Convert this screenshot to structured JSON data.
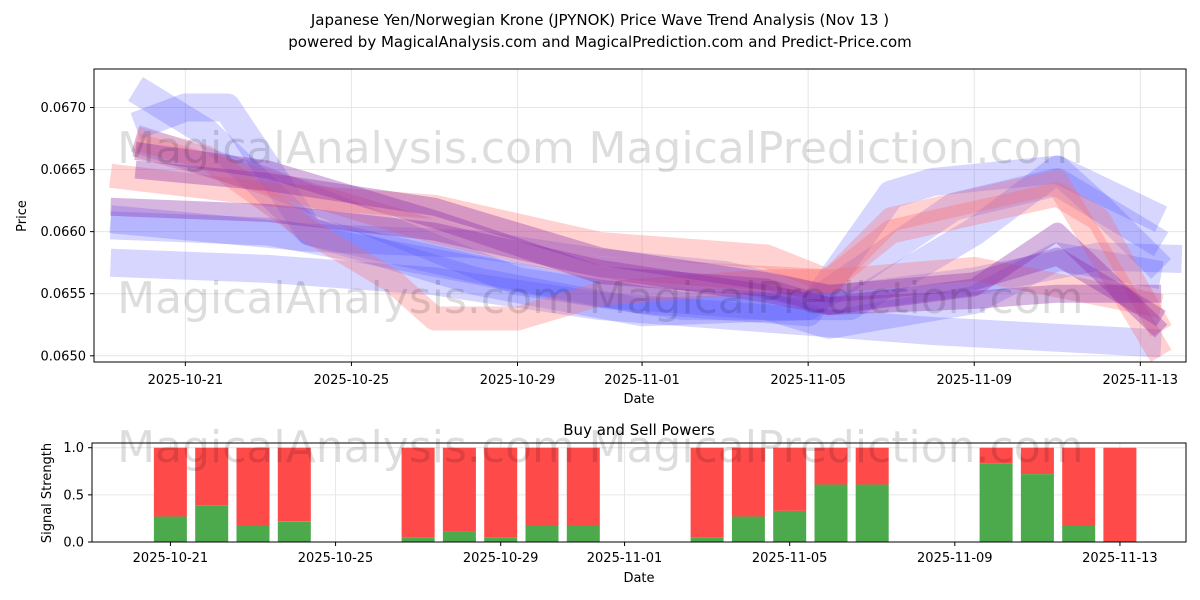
{
  "title_line1": "Japanese Yen/Norwegian Krone (JPYNOK) Price Wave Trend Analysis (Nov 13 )",
  "title_line2": "powered by MagicalAnalysis.com and MagicalPrediction.com and Predict-Price.com",
  "watermarks": [
    "MagicalAnalysis.com",
    "MagicalPrediction.com"
  ],
  "colors": {
    "buy": "#4caa4c",
    "sell": "#ff4a4a",
    "blue_wave": "#4444ff",
    "red_wave": "#ff6666",
    "purple_wave": "#8a2ba8"
  },
  "chart_data": [
    {
      "type": "line",
      "title": "",
      "xlabel": "Date",
      "ylabel": "Price",
      "x_ticks": [
        "2025-10-21",
        "2025-10-25",
        "2025-10-29",
        "2025-11-01",
        "2025-11-05",
        "2025-11-09",
        "2025-11-13"
      ],
      "y_ticks": [
        "0.0650",
        "0.0655",
        "0.0660",
        "0.0665",
        "0.0670"
      ],
      "ylim": [
        0.06495,
        0.06731
      ],
      "xlim_day_index": [
        -2.2,
        24.1
      ],
      "x_start_date": "2025-10-21",
      "series": [
        {
          "name": "blue-1",
          "color": "blue",
          "points": [
            [
              -1.8,
              0.06575
            ],
            [
              2,
              0.0657
            ],
            [
              6,
              0.0656
            ],
            [
              10,
              0.0654
            ],
            [
              14,
              0.0653
            ],
            [
              18,
              0.0652
            ],
            [
              23.5,
              0.0651
            ]
          ]
        },
        {
          "name": "blue-2",
          "color": "blue",
          "points": [
            [
              -1.8,
              0.0661
            ],
            [
              3,
              0.06595
            ],
            [
              7,
              0.0659
            ],
            [
              10,
              0.06575
            ],
            [
              13,
              0.06565
            ],
            [
              15.5,
              0.06545
            ],
            [
              19,
              0.0656
            ],
            [
              22,
              0.0658
            ],
            [
              24,
              0.06578
            ]
          ]
        },
        {
          "name": "blue-3",
          "color": "blue",
          "points": [
            [
              -1.8,
              0.06605
            ],
            [
              2,
              0.066
            ],
            [
              6,
              0.06575
            ],
            [
              10,
              0.0655
            ],
            [
              14,
              0.0654
            ],
            [
              15.5,
              0.06525
            ],
            [
              19,
              0.06545
            ],
            [
              21,
              0.0658
            ],
            [
              23.5,
              0.06565
            ]
          ]
        },
        {
          "name": "blue-4",
          "color": "blue",
          "points": [
            [
              -1.2,
              0.06715
            ],
            [
              0.5,
              0.0668
            ],
            [
              3,
              0.066
            ],
            [
              7,
              0.0656
            ],
            [
              11,
              0.06535
            ],
            [
              15,
              0.0654
            ],
            [
              18.5,
              0.0662
            ],
            [
              21,
              0.0664
            ],
            [
              23.5,
              0.0659
            ]
          ]
        },
        {
          "name": "blue-5",
          "color": "blue",
          "points": [
            [
              -1.2,
              0.06685
            ],
            [
              0,
              0.067
            ],
            [
              1,
              0.067
            ],
            [
              3,
              0.066
            ],
            [
              7,
              0.0657
            ],
            [
              11,
              0.06545
            ],
            [
              15,
              0.06535
            ],
            [
              17,
              0.0663
            ],
            [
              18,
              0.0664
            ],
            [
              21,
              0.0665
            ],
            [
              23.5,
              0.0661
            ]
          ]
        },
        {
          "name": "blue-6",
          "color": "blue",
          "points": [
            [
              -1.2,
              0.06675
            ],
            [
              2,
              0.0664
            ],
            [
              5,
              0.066
            ],
            [
              8,
              0.0656
            ],
            [
              12,
              0.0654
            ],
            [
              16,
              0.0654
            ],
            [
              19,
              0.066
            ],
            [
              21,
              0.0665
            ],
            [
              22,
              0.0662
            ],
            [
              23.5,
              0.0657
            ]
          ]
        },
        {
          "name": "red-1",
          "color": "red",
          "points": [
            [
              -1.8,
              0.06645
            ],
            [
              2,
              0.0663
            ],
            [
              6,
              0.0662
            ],
            [
              10,
              0.0659
            ],
            [
              14,
              0.0658
            ],
            [
              15.5,
              0.0656
            ],
            [
              17,
              0.066
            ],
            [
              21,
              0.0663
            ],
            [
              22,
              0.0661
            ],
            [
              23.5,
              0.0652
            ]
          ]
        },
        {
          "name": "red-2",
          "color": "red",
          "points": [
            [
              -1.2,
              0.06675
            ],
            [
              0.5,
              0.0666
            ],
            [
              3,
              0.066
            ],
            [
              5,
              0.0656
            ],
            [
              6,
              0.0653
            ],
            [
              8,
              0.0653
            ],
            [
              10,
              0.0655
            ],
            [
              14,
              0.0656
            ],
            [
              15.5,
              0.0656
            ],
            [
              17,
              0.0661
            ],
            [
              21,
              0.0664
            ],
            [
              23.5,
              0.065
            ]
          ]
        },
        {
          "name": "red-3",
          "color": "red",
          "points": [
            [
              -1.2,
              0.0667
            ],
            [
              2,
              0.0664
            ],
            [
              6,
              0.066
            ],
            [
              10,
              0.0657
            ],
            [
              15.5,
              0.0656
            ],
            [
              19,
              0.0657
            ],
            [
              23.5,
              0.0654
            ]
          ]
        },
        {
          "name": "purple-1",
          "color": "purple",
          "points": [
            [
              -1.8,
              0.0662
            ],
            [
              2,
              0.06615
            ],
            [
              6,
              0.066
            ],
            [
              10,
              0.0657
            ],
            [
              14,
              0.0655
            ],
            [
              15.5,
              0.0654
            ],
            [
              19,
              0.06545
            ],
            [
              21,
              0.0655
            ],
            [
              23.5,
              0.0655
            ]
          ]
        },
        {
          "name": "purple-2",
          "color": "purple",
          "points": [
            [
              -1.2,
              0.0665
            ],
            [
              2,
              0.0664
            ],
            [
              6,
              0.0662
            ],
            [
              10,
              0.0658
            ],
            [
              14,
              0.0656
            ],
            [
              15.5,
              0.0655
            ],
            [
              19,
              0.0656
            ],
            [
              21,
              0.0658
            ],
            [
              23.5,
              0.0653
            ]
          ]
        },
        {
          "name": "purple-3",
          "color": "purple",
          "points": [
            [
              -1.2,
              0.06665
            ],
            [
              2,
              0.0665
            ],
            [
              6,
              0.0661
            ],
            [
              10,
              0.06565
            ],
            [
              14,
              0.06555
            ],
            [
              15.5,
              0.0654
            ],
            [
              19,
              0.06555
            ],
            [
              21,
              0.066
            ],
            [
              23.5,
              0.0652
            ]
          ]
        }
      ]
    },
    {
      "type": "bar",
      "title": "Buy and Sell Powers",
      "xlabel": "Date",
      "ylabel": "Signal Strength",
      "x_ticks": [
        "2025-10-21",
        "2025-10-25",
        "2025-10-29",
        "2025-11-01",
        "2025-11-05",
        "2025-11-09",
        "2025-11-13"
      ],
      "y_ticks": [
        "0.0",
        "0.5",
        "1.0"
      ],
      "ylim": [
        0,
        1.05
      ],
      "xlim_day_index": [
        -1.9,
        24.6
      ],
      "x_start_date": "2025-10-21",
      "bars": [
        {
          "day": 0,
          "buy": 0.27
        },
        {
          "day": 1,
          "buy": 0.39
        },
        {
          "day": 2,
          "buy": 0.17
        },
        {
          "day": 3,
          "buy": 0.22
        },
        {
          "day": 6,
          "buy": 0.05
        },
        {
          "day": 7,
          "buy": 0.11
        },
        {
          "day": 8,
          "buy": 0.05
        },
        {
          "day": 9,
          "buy": 0.17
        },
        {
          "day": 10,
          "buy": 0.17
        },
        {
          "day": 13,
          "buy": 0.05
        },
        {
          "day": 14,
          "buy": 0.27
        },
        {
          "day": 15,
          "buy": 0.33
        },
        {
          "day": 16,
          "buy": 0.61
        },
        {
          "day": 17,
          "buy": 0.61
        },
        {
          "day": 20,
          "buy": 0.83
        },
        {
          "day": 21,
          "buy": 0.72
        },
        {
          "day": 22,
          "buy": 0.17
        },
        {
          "day": 23,
          "buy": 0.0
        }
      ]
    }
  ]
}
